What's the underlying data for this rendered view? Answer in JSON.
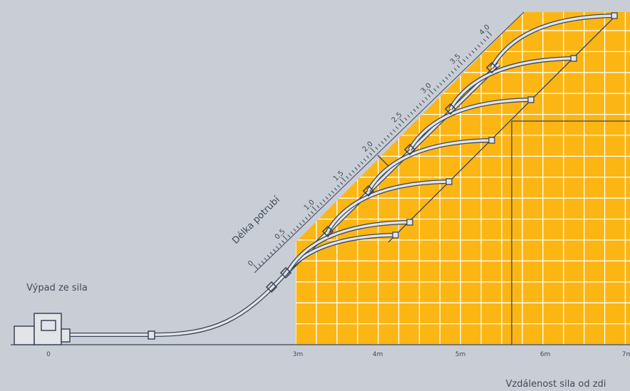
{
  "labels": {
    "outlet": "Výpad ze sila",
    "pipe_length": "Délka potrubí",
    "distance": "Vzdálenost sila od zdi"
  },
  "x_axis": [
    "0",
    "3m",
    "4m",
    "5m",
    "6m",
    "7m"
  ],
  "length_scale": [
    "0",
    "0.5",
    "1.0",
    "1.5",
    "2.0",
    "2.5",
    "3.0",
    "3.5",
    "4.0"
  ]
}
